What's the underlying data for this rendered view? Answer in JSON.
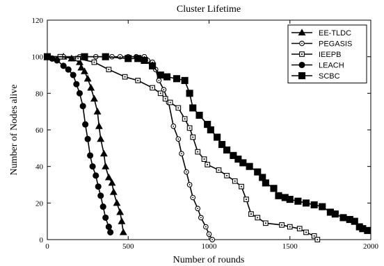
{
  "chart_data": {
    "type": "line",
    "title": "Cluster Lifetime",
    "xlabel": "Number of rounds",
    "ylabel": "Number of Nodes alive",
    "xlim": [
      0,
      2000
    ],
    "ylim": [
      0,
      120
    ],
    "xticks": [
      0,
      500,
      1000,
      1500,
      2000
    ],
    "yticks": [
      0,
      20,
      40,
      60,
      80,
      100,
      120
    ],
    "grid": false,
    "legend_position": "top-right",
    "series": [
      {
        "name": "EE-TLDC",
        "marker": "triangle",
        "points": [
          [
            0,
            100
          ],
          [
            100,
            100
          ],
          [
            150,
            99
          ],
          [
            200,
            97
          ],
          [
            210,
            94
          ],
          [
            230,
            92
          ],
          [
            250,
            88
          ],
          [
            270,
            83
          ],
          [
            290,
            77
          ],
          [
            310,
            70
          ],
          [
            320,
            62
          ],
          [
            330,
            55
          ],
          [
            350,
            47
          ],
          [
            360,
            40
          ],
          [
            380,
            34
          ],
          [
            400,
            31
          ],
          [
            410,
            26
          ],
          [
            430,
            20
          ],
          [
            450,
            15
          ],
          [
            460,
            10
          ],
          [
            470,
            4
          ]
        ]
      },
      {
        "name": "PEGASIS",
        "marker": "circle-open",
        "points": [
          [
            0,
            100
          ],
          [
            100,
            100
          ],
          [
            200,
            100
          ],
          [
            300,
            100
          ],
          [
            400,
            100
          ],
          [
            450,
            100
          ],
          [
            500,
            100
          ],
          [
            550,
            100
          ],
          [
            600,
            100
          ],
          [
            620,
            98
          ],
          [
            650,
            97
          ],
          [
            670,
            93
          ],
          [
            690,
            87
          ],
          [
            720,
            82
          ],
          [
            750,
            75
          ],
          [
            780,
            62
          ],
          [
            810,
            55
          ],
          [
            830,
            47
          ],
          [
            860,
            37
          ],
          [
            880,
            30
          ],
          [
            900,
            23
          ],
          [
            930,
            17
          ],
          [
            950,
            12
          ],
          [
            980,
            7
          ],
          [
            1000,
            3
          ],
          [
            1020,
            0
          ]
        ]
      },
      {
        "name": "IEEPB",
        "marker": "square-open",
        "points": [
          [
            0,
            100
          ],
          [
            80,
            100
          ],
          [
            190,
            99
          ],
          [
            290,
            97
          ],
          [
            380,
            93
          ],
          [
            480,
            89
          ],
          [
            560,
            87
          ],
          [
            650,
            83
          ],
          [
            700,
            80
          ],
          [
            730,
            77
          ],
          [
            760,
            75
          ],
          [
            810,
            72
          ],
          [
            850,
            66
          ],
          [
            880,
            61
          ],
          [
            900,
            56
          ],
          [
            930,
            48
          ],
          [
            970,
            44
          ],
          [
            990,
            41
          ],
          [
            1060,
            38
          ],
          [
            1110,
            35
          ],
          [
            1160,
            32
          ],
          [
            1200,
            29
          ],
          [
            1230,
            22
          ],
          [
            1260,
            14
          ],
          [
            1300,
            12
          ],
          [
            1350,
            9
          ],
          [
            1450,
            8
          ],
          [
            1500,
            7
          ],
          [
            1560,
            6
          ],
          [
            1600,
            4
          ],
          [
            1650,
            2
          ],
          [
            1670,
            0
          ]
        ]
      },
      {
        "name": "LEACH",
        "marker": "circle-filled",
        "points": [
          [
            0,
            100
          ],
          [
            30,
            99
          ],
          [
            60,
            98
          ],
          [
            100,
            95
          ],
          [
            130,
            93
          ],
          [
            160,
            90
          ],
          [
            180,
            85
          ],
          [
            200,
            80
          ],
          [
            220,
            73
          ],
          [
            235,
            63
          ],
          [
            250,
            55
          ],
          [
            265,
            46
          ],
          [
            280,
            40
          ],
          [
            300,
            35
          ],
          [
            315,
            29
          ],
          [
            330,
            24
          ],
          [
            345,
            18
          ],
          [
            360,
            12
          ],
          [
            380,
            7
          ],
          [
            390,
            4
          ]
        ]
      },
      {
        "name": "SCBC",
        "marker": "square-filled",
        "points": [
          [
            0,
            100
          ],
          [
            230,
            100
          ],
          [
            360,
            100
          ],
          [
            500,
            99
          ],
          [
            560,
            99
          ],
          [
            600,
            98
          ],
          [
            650,
            95
          ],
          [
            700,
            90
          ],
          [
            740,
            89
          ],
          [
            800,
            88
          ],
          [
            850,
            87
          ],
          [
            880,
            80
          ],
          [
            900,
            72
          ],
          [
            940,
            68
          ],
          [
            990,
            63
          ],
          [
            1010,
            60
          ],
          [
            1050,
            56
          ],
          [
            1080,
            52
          ],
          [
            1110,
            49
          ],
          [
            1150,
            46
          ],
          [
            1180,
            44
          ],
          [
            1210,
            42
          ],
          [
            1250,
            40
          ],
          [
            1300,
            37
          ],
          [
            1330,
            34
          ],
          [
            1350,
            31
          ],
          [
            1400,
            28
          ],
          [
            1430,
            24
          ],
          [
            1470,
            23
          ],
          [
            1500,
            22
          ],
          [
            1550,
            21
          ],
          [
            1600,
            20
          ],
          [
            1650,
            19
          ],
          [
            1700,
            18
          ],
          [
            1750,
            15
          ],
          [
            1780,
            14
          ],
          [
            1830,
            12
          ],
          [
            1870,
            11
          ],
          [
            1900,
            10
          ],
          [
            1930,
            7
          ],
          [
            1950,
            6
          ],
          [
            1980,
            5
          ]
        ]
      }
    ]
  }
}
